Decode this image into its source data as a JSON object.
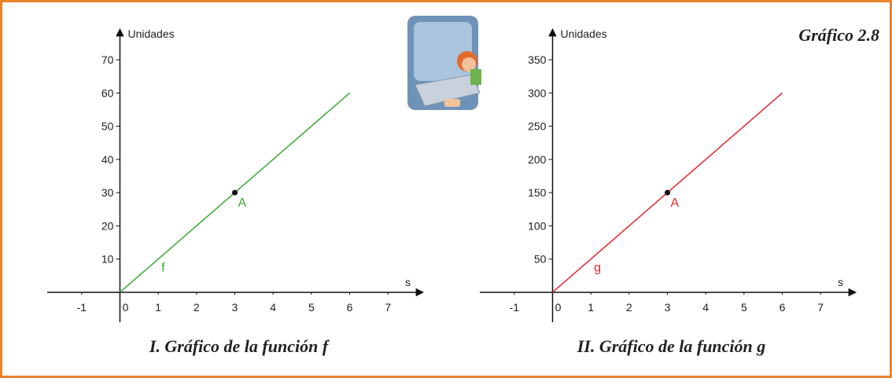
{
  "figure_label": "Gráfico 2.8",
  "chart_data": [
    {
      "type": "line",
      "title": "I. Gráfico de la función f",
      "ylabel": "Unidades",
      "xlabel": "s",
      "x": [
        0,
        6
      ],
      "series": [
        {
          "name": "f",
          "color": "#3aaa35",
          "values": [
            0,
            60
          ]
        }
      ],
      "points": [
        {
          "label": "A",
          "x": 3,
          "y": 30
        }
      ],
      "xlim": [
        -1.9,
        7.9
      ],
      "ylim": [
        -9,
        79
      ],
      "xticks": [
        -1,
        0,
        1,
        2,
        3,
        4,
        5,
        6,
        7
      ],
      "yticks": [
        10,
        20,
        30,
        40,
        50,
        60,
        70
      ]
    },
    {
      "type": "line",
      "title": "II. Gráfico de la función g",
      "ylabel": "Unidades",
      "xlabel": "s",
      "x": [
        0,
        6
      ],
      "series": [
        {
          "name": "g",
          "color": "#e3262e",
          "values": [
            0,
            300
          ]
        }
      ],
      "points": [
        {
          "label": "A",
          "x": 3,
          "y": 150
        }
      ],
      "xlim": [
        -1.9,
        7.9
      ],
      "ylim": [
        -45,
        395
      ],
      "xticks": [
        -1,
        0,
        1,
        2,
        3,
        4,
        5,
        6,
        7
      ],
      "yticks": [
        50,
        100,
        150,
        200,
        250,
        300,
        350
      ]
    }
  ]
}
